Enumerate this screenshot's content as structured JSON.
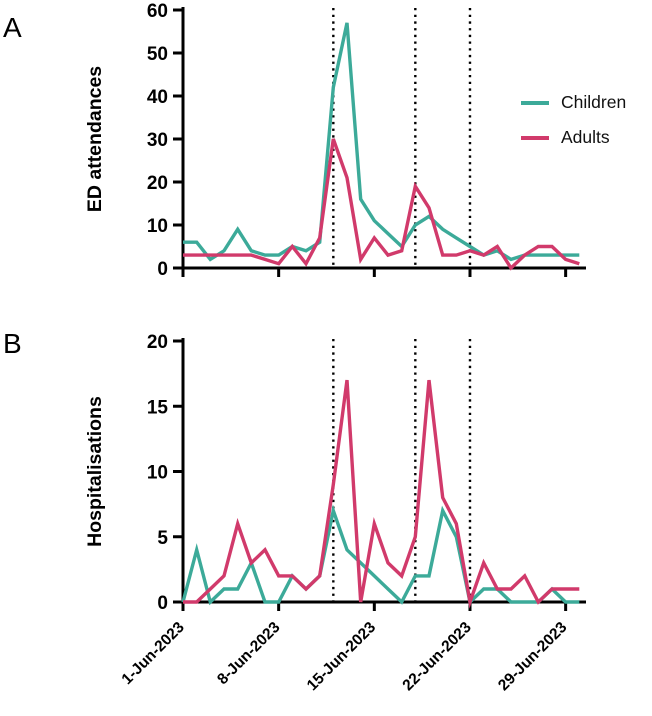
{
  "figure": {
    "panel_a_label": "A",
    "panel_b_label": "B",
    "legend": {
      "items": [
        {
          "label": "Children",
          "color": "#3CAA99"
        },
        {
          "label": "Adults",
          "color": "#D13A6B"
        }
      ]
    },
    "axis_color": "#000000",
    "reference_line_color": "#000000"
  },
  "chart_data": [
    {
      "type": "line",
      "panel": "A",
      "ylabel": "ED attendances",
      "ylim": [
        0,
        60
      ],
      "yticks": [
        0,
        10,
        20,
        30,
        40,
        50,
        60
      ],
      "x": [
        1,
        2,
        3,
        4,
        5,
        6,
        7,
        8,
        9,
        10,
        11,
        12,
        13,
        14,
        15,
        16,
        17,
        18,
        19,
        20,
        21,
        22,
        23,
        24,
        25,
        26,
        27,
        28,
        29,
        30
      ],
      "x_unit": "day of June 2023",
      "xtick_days": [
        1,
        8,
        15,
        22,
        29
      ],
      "xtick_labels": [
        "1-Jun-2023",
        "8-Jun-2023",
        "15-Jun-2023",
        "22-Jun-2023",
        "29-Jun-2023"
      ],
      "show_xtick_labels": false,
      "vlines_days": [
        12,
        18,
        22
      ],
      "vline_style": "dotted",
      "grid": false,
      "legend_position": "right-inside-top",
      "series": [
        {
          "name": "Children",
          "color": "#3CAA99",
          "values": [
            6,
            6,
            2,
            4,
            9,
            4,
            3,
            3,
            5,
            4,
            6,
            42,
            57,
            16,
            11,
            8,
            5,
            10,
            12,
            9,
            7,
            5,
            3,
            4,
            2,
            3,
            3,
            3,
            3,
            3
          ]
        },
        {
          "name": "Adults",
          "color": "#D13A6B",
          "values": [
            3,
            3,
            3,
            3,
            3,
            3,
            2,
            1,
            5,
            1,
            7,
            30,
            21,
            2,
            7,
            3,
            4,
            19,
            14,
            3,
            3,
            4,
            3,
            5,
            0,
            3,
            5,
            5,
            2,
            1
          ]
        }
      ]
    },
    {
      "type": "line",
      "panel": "B",
      "ylabel": "Hospitalisations",
      "ylim": [
        0,
        20
      ],
      "yticks": [
        0,
        5,
        10,
        15,
        20
      ],
      "x": [
        1,
        2,
        3,
        4,
        5,
        6,
        7,
        8,
        9,
        10,
        11,
        12,
        13,
        14,
        15,
        16,
        17,
        18,
        19,
        20,
        21,
        22,
        23,
        24,
        25,
        26,
        27,
        28,
        29,
        30
      ],
      "x_unit": "day of June 2023",
      "xtick_days": [
        1,
        8,
        15,
        22,
        29
      ],
      "xtick_labels": [
        "1-Jun-2023",
        "8-Jun-2023",
        "15-Jun-2023",
        "22-Jun-2023",
        "29-Jun-2023"
      ],
      "show_xtick_labels": true,
      "vlines_days": [
        12,
        18,
        22
      ],
      "vline_style": "dotted",
      "grid": false,
      "legend_position": "none",
      "series": [
        {
          "name": "Children",
          "color": "#3CAA99",
          "values": [
            0,
            4,
            0,
            1,
            1,
            3,
            0,
            0,
            2,
            1,
            2,
            7,
            4,
            3,
            2,
            1,
            0,
            2,
            2,
            7,
            5,
            0,
            1,
            1,
            0,
            0,
            0,
            1,
            0,
            0
          ]
        },
        {
          "name": "Adults",
          "color": "#D13A6B",
          "values": [
            0,
            0,
            1,
            2,
            6,
            3,
            4,
            2,
            2,
            1,
            2,
            9,
            17,
            0,
            6,
            3,
            2,
            5,
            17,
            8,
            6,
            0,
            3,
            1,
            1,
            2,
            0,
            1,
            1,
            1
          ]
        }
      ]
    }
  ]
}
